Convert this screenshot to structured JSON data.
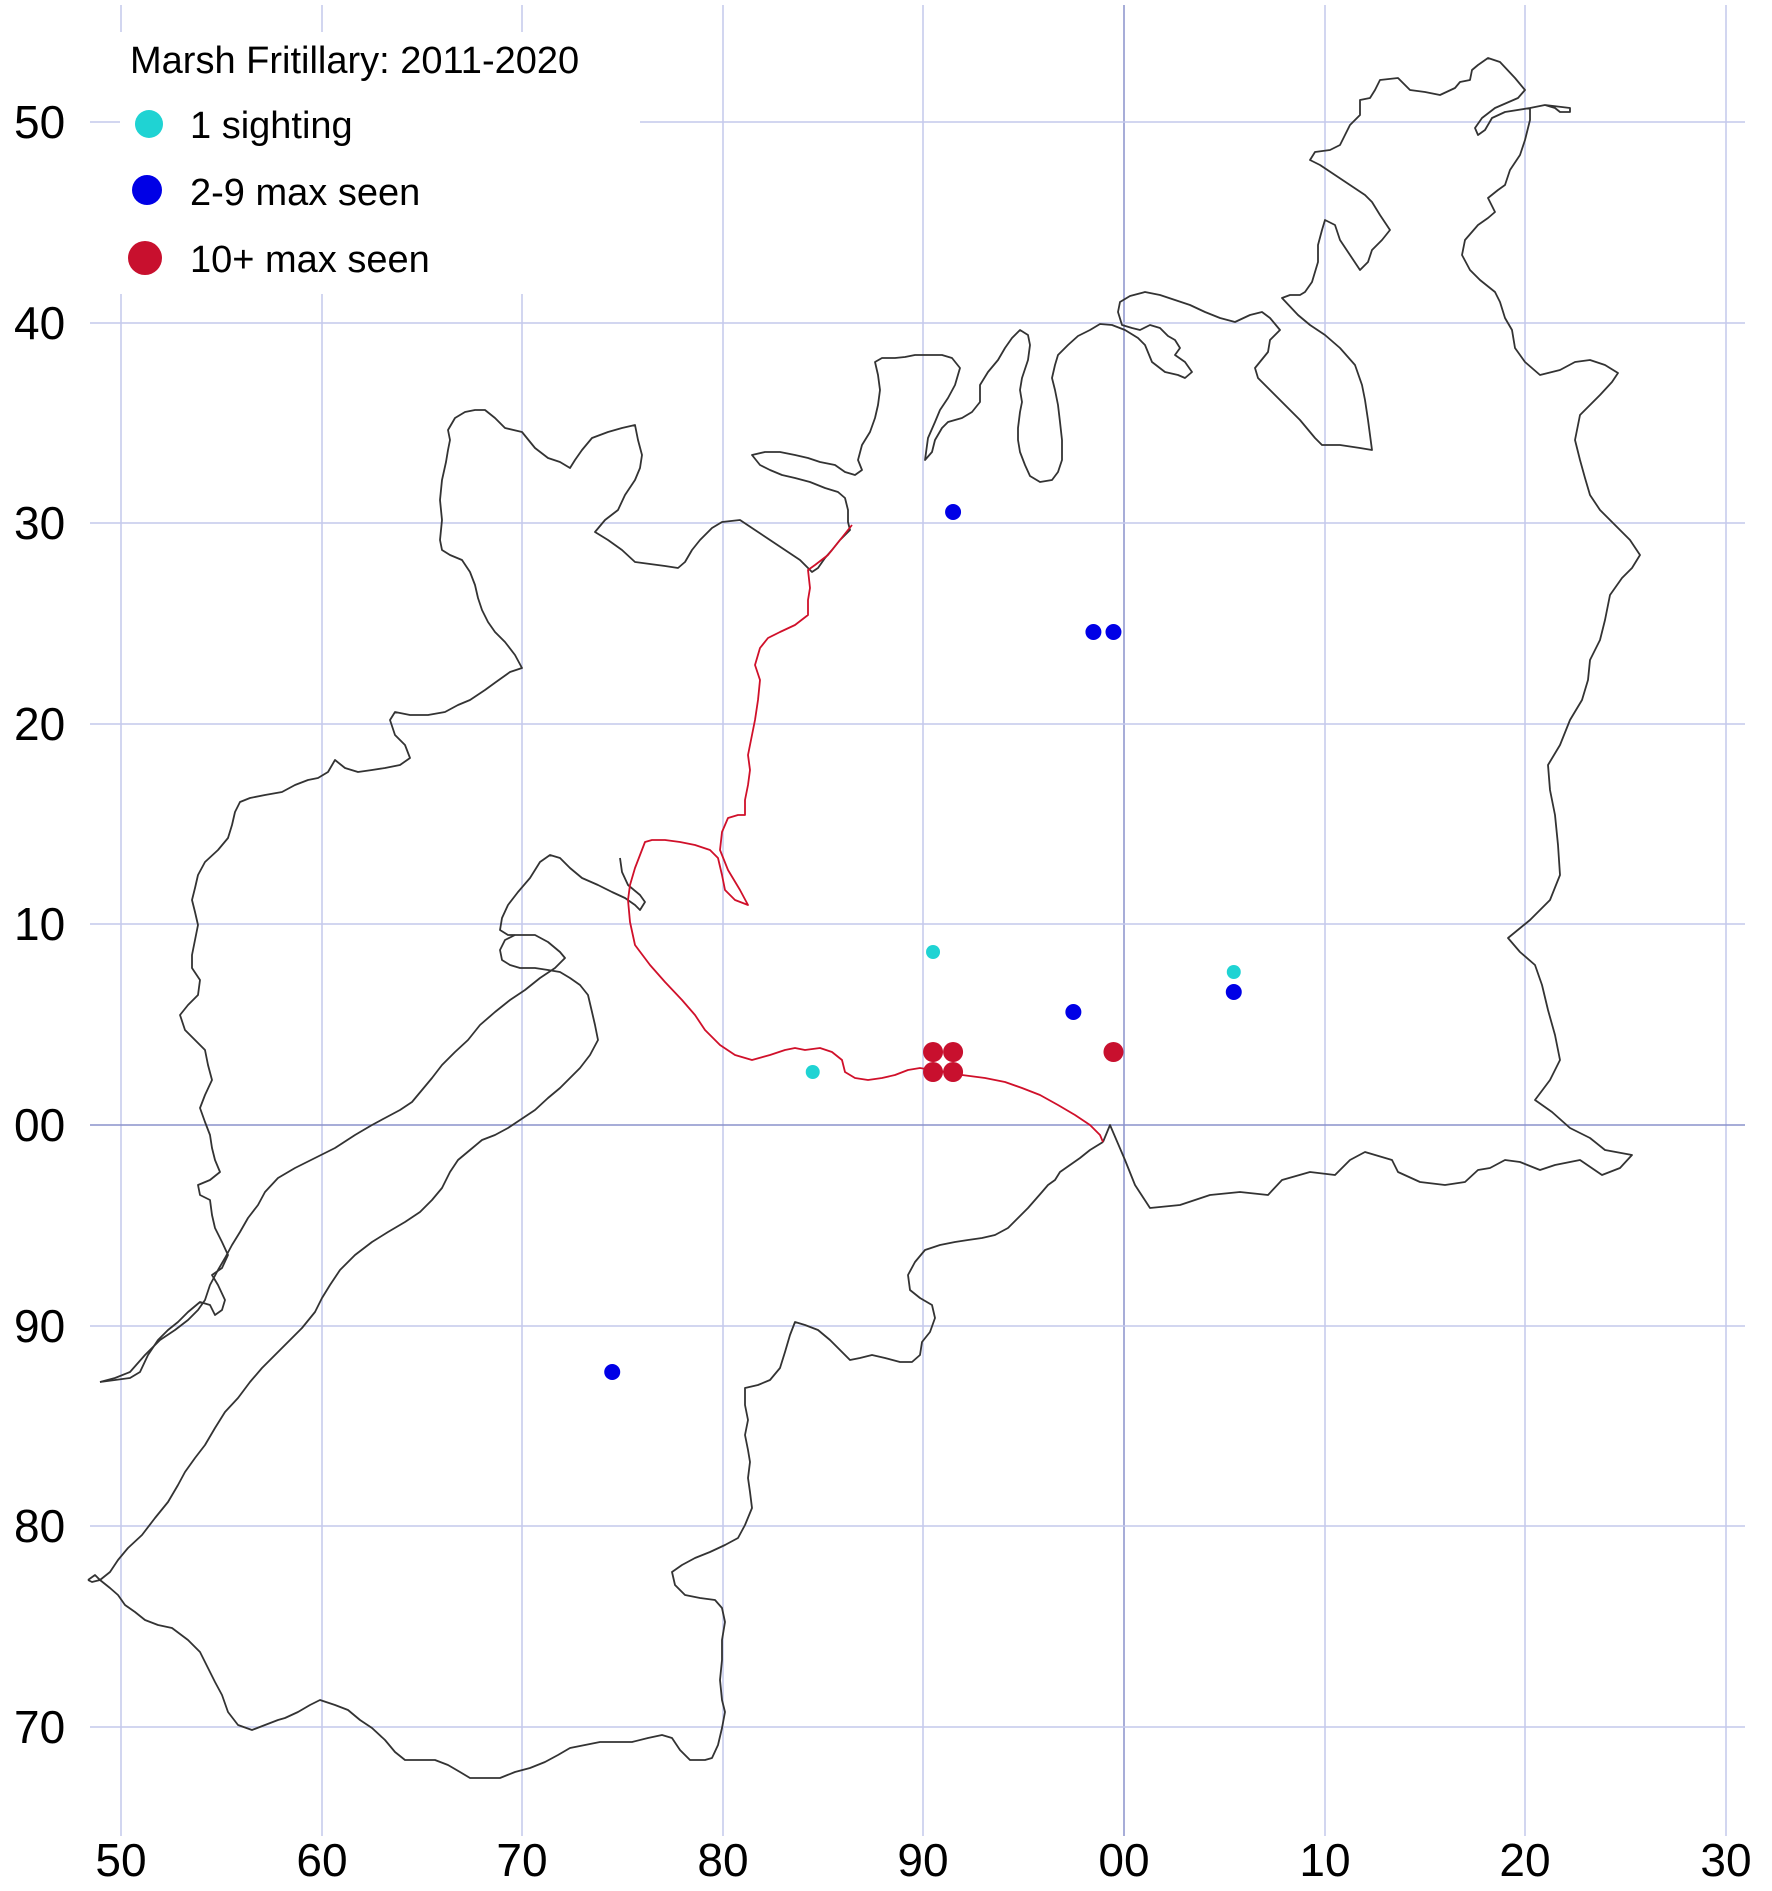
{
  "legend": {
    "title": "Marsh Fritillary:  2011-2020",
    "entries": [
      {
        "label": "1 sighting",
        "color": "#1fd3d3"
      },
      {
        "label": "2-9 max seen",
        "color": "#0000e6"
      },
      {
        "label": "10+ max seen",
        "color": "#c8102e"
      }
    ]
  },
  "colors": {
    "grid": "#c4c9ec",
    "grid_main": "#8a92cc",
    "boundary": "#333333",
    "divider": "#d0102a"
  },
  "grid": {
    "x_labels": [
      "50",
      "60",
      "70",
      "80",
      "90",
      "00",
      "10",
      "20",
      "30"
    ],
    "y_labels": [
      "50",
      "40",
      "30",
      "20",
      "10",
      "00",
      "90",
      "80",
      "70"
    ]
  },
  "sightings": [
    {
      "category": "2-9 max seen",
      "east": 91.5,
      "north": 130.5
    },
    {
      "category": "2-9 max seen",
      "east": 98.5,
      "north": 124.5
    },
    {
      "category": "2-9 max seen",
      "east": 99.5,
      "north": 124.5
    },
    {
      "category": "1 sighting",
      "east": 90.5,
      "north": 108.5
    },
    {
      "category": "1 sighting",
      "east": 105.5,
      "north": 107.5
    },
    {
      "category": "2-9 max seen",
      "east": 105.5,
      "north": 106.5
    },
    {
      "category": "2-9 max seen",
      "east": 97.5,
      "north": 105.5
    },
    {
      "category": "10+ max seen",
      "east": 90.5,
      "north": 103.5
    },
    {
      "category": "10+ max seen",
      "east": 91.5,
      "north": 103.5
    },
    {
      "category": "10+ max seen",
      "east": 99.5,
      "north": 103.5
    },
    {
      "category": "10+ max seen",
      "east": 90.5,
      "north": 102.5
    },
    {
      "category": "10+ max seen",
      "east": 91.5,
      "north": 102.5
    },
    {
      "category": "1 sighting",
      "east": 84.5,
      "north": 102.5
    },
    {
      "category": "2-9 max seen",
      "east": 74.5,
      "north": 87.5
    }
  ]
}
